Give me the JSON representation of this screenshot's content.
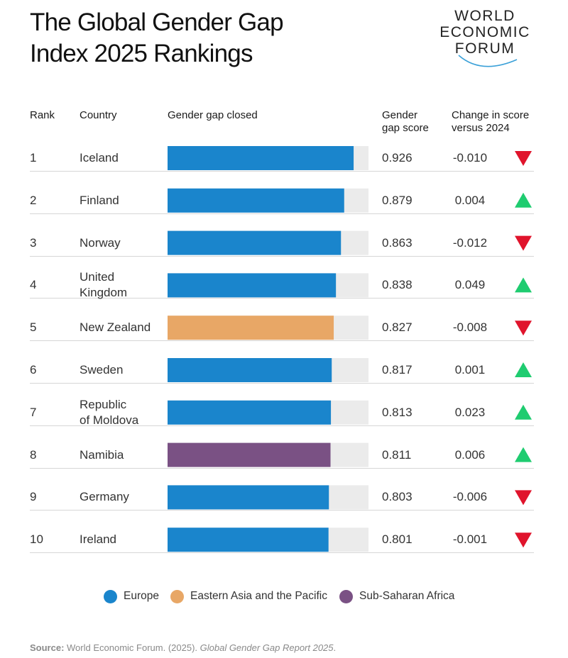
{
  "title_lines": [
    "The Global Gender Gap",
    "Index 2025 Rankings"
  ],
  "logo": {
    "lines": [
      "WORLD",
      "ECONOMIC",
      "FORUM"
    ]
  },
  "headers": {
    "rank": "Rank",
    "country": "Country",
    "gap_closed": "Gender gap closed",
    "score": [
      "Gender",
      "gap score"
    ],
    "change": [
      "Change in score",
      "versus 2024"
    ]
  },
  "colors": {
    "Europe": "#1a85cc",
    "Eastern Asia and the Pacific": "#e8a766",
    "Sub-Saharan Africa": "#7a5184",
    "track": "#ebebeb",
    "up": "#1fcc70",
    "down": "#e0142c"
  },
  "chart_data": {
    "type": "bar",
    "orientation": "horizontal",
    "xlim": [
      0,
      1
    ],
    "categories": [
      "Iceland",
      "Finland",
      "Norway",
      "United Kingdom",
      "New Zealand",
      "Sweden",
      "Republic of Moldova",
      "Namibia",
      "Germany",
      "Ireland"
    ],
    "rows": [
      {
        "rank": "1",
        "country_lines": [
          "Iceland"
        ],
        "score": 0.926,
        "score_label": "0.926",
        "change": -0.01,
        "change_label": "-0.010",
        "region": "Europe"
      },
      {
        "rank": "2",
        "country_lines": [
          "Finland"
        ],
        "score": 0.879,
        "score_label": "0.879",
        "change": 0.004,
        "change_label": "0.004",
        "region": "Europe"
      },
      {
        "rank": "3",
        "country_lines": [
          "Norway"
        ],
        "score": 0.863,
        "score_label": "0.863",
        "change": -0.012,
        "change_label": "-0.012",
        "region": "Europe"
      },
      {
        "rank": "4",
        "country_lines": [
          "United",
          "Kingdom"
        ],
        "score": 0.838,
        "score_label": "0.838",
        "change": 0.049,
        "change_label": "0.049",
        "region": "Europe"
      },
      {
        "rank": "5",
        "country_lines": [
          "New Zealand"
        ],
        "score": 0.827,
        "score_label": "0.827",
        "change": -0.008,
        "change_label": "-0.008",
        "region": "Eastern Asia and the Pacific"
      },
      {
        "rank": "6",
        "country_lines": [
          "Sweden"
        ],
        "score": 0.817,
        "score_label": "0.817",
        "change": 0.001,
        "change_label": "0.001",
        "region": "Europe"
      },
      {
        "rank": "7",
        "country_lines": [
          "Republic",
          "of Moldova"
        ],
        "score": 0.813,
        "score_label": "0.813",
        "change": 0.023,
        "change_label": "0.023",
        "region": "Europe"
      },
      {
        "rank": "8",
        "country_lines": [
          "Namibia"
        ],
        "score": 0.811,
        "score_label": "0.811",
        "change": 0.006,
        "change_label": "0.006",
        "region": "Sub-Saharan Africa"
      },
      {
        "rank": "9",
        "country_lines": [
          "Germany"
        ],
        "score": 0.803,
        "score_label": "0.803",
        "change": -0.006,
        "change_label": "-0.006",
        "region": "Europe"
      },
      {
        "rank": "10",
        "country_lines": [
          "Ireland"
        ],
        "score": 0.801,
        "score_label": "0.801",
        "change": -0.001,
        "change_label": "-0.001",
        "region": "Europe"
      }
    ],
    "legend": [
      "Europe",
      "Eastern Asia and the Pacific",
      "Sub-Saharan Africa"
    ],
    "legend_position": "bottom-center"
  },
  "source": {
    "label": "Source:",
    "text": " World Economic Forum. (2025). ",
    "title": "Global Gender Gap Report 2025",
    "end": "."
  }
}
